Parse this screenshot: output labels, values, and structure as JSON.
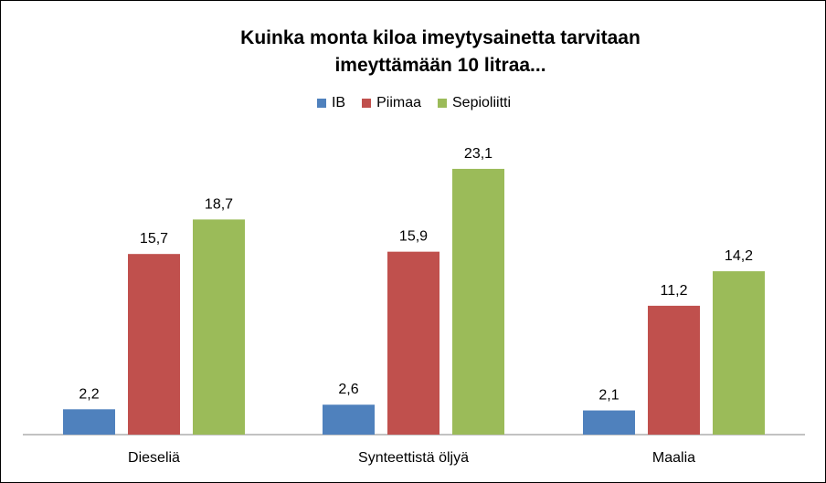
{
  "chart_data": {
    "type": "bar",
    "title_lines": [
      "Kuinka monta kiloa imeytysainetta tarvitaan",
      "imeyttämään 10 litraa..."
    ],
    "categories": [
      "Dieseliä",
      "Synteettistä öljyä",
      "Maalia"
    ],
    "series": [
      {
        "name": "IB",
        "color": "#4F81BD",
        "values": [
          2.2,
          2.6,
          2.1
        ],
        "labels": [
          "2,2",
          "2,6",
          "2,1"
        ]
      },
      {
        "name": "Piimaa",
        "color": "#C0504D",
        "values": [
          15.7,
          15.9,
          11.2
        ],
        "labels": [
          "15,7",
          "15,9",
          "11,2"
        ]
      },
      {
        "name": "Sepioliitti",
        "color": "#9BBB59",
        "values": [
          18.7,
          23.1,
          14.2
        ],
        "labels": [
          "18,7",
          "23,1",
          "14,2"
        ]
      }
    ],
    "ylim": [
      0,
      25
    ],
    "grid": false,
    "legend": "top"
  }
}
